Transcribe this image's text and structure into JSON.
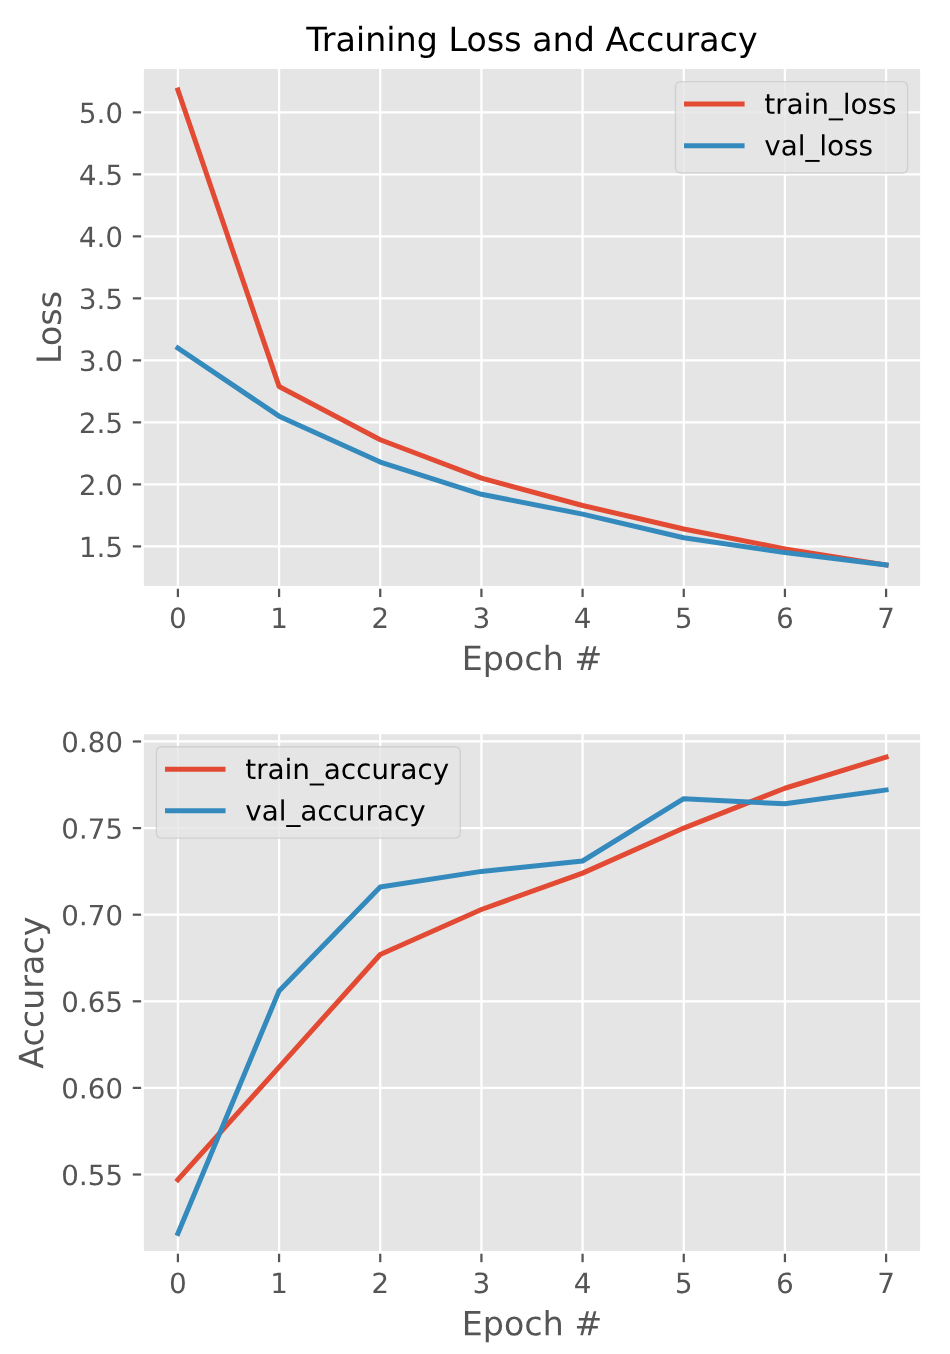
{
  "chart_data": [
    {
      "type": "line",
      "title": "Training Loss and Accuracy",
      "xlabel": "Epoch #",
      "ylabel": "Loss",
      "x": [
        0,
        1,
        2,
        3,
        4,
        5,
        6,
        7
      ],
      "xlim": [
        -0.35,
        7.35
      ],
      "xticks": [
        0,
        1,
        2,
        3,
        4,
        5,
        6,
        7
      ],
      "ylim": [
        1.17,
        5.36
      ],
      "yticks": [
        {
          "value": 1.5,
          "label": "1.5"
        },
        {
          "value": 2.0,
          "label": "2.0"
        },
        {
          "value": 2.5,
          "label": "2.5"
        },
        {
          "value": 3.0,
          "label": "3.0"
        },
        {
          "value": 3.5,
          "label": "3.5"
        },
        {
          "value": 4.0,
          "label": "4.0"
        },
        {
          "value": 4.5,
          "label": "4.5"
        },
        {
          "value": 5.0,
          "label": "5.0"
        }
      ],
      "grid": true,
      "legend": "top right",
      "series": [
        {
          "name": "train_loss",
          "color": "#e24a33",
          "values": [
            5.18,
            2.79,
            2.36,
            2.05,
            1.83,
            1.64,
            1.48,
            1.35
          ]
        },
        {
          "name": "val_loss",
          "color": "#348abd",
          "values": [
            3.1,
            2.55,
            2.18,
            1.92,
            1.76,
            1.57,
            1.45,
            1.35
          ]
        }
      ]
    },
    {
      "type": "line",
      "xlabel": "Epoch #",
      "ylabel": "Accuracy",
      "x": [
        0,
        1,
        2,
        3,
        4,
        5,
        6,
        7
      ],
      "xlim": [
        -0.35,
        7.35
      ],
      "xticks": [
        0,
        1,
        2,
        3,
        4,
        5,
        6,
        7
      ],
      "ylim": [
        0.505,
        0.805
      ],
      "yticks": [
        {
          "value": 0.55,
          "label": "0.55"
        },
        {
          "value": 0.6,
          "label": "0.60"
        },
        {
          "value": 0.65,
          "label": "0.65"
        },
        {
          "value": 0.7,
          "label": "0.70"
        },
        {
          "value": 0.75,
          "label": "0.75"
        },
        {
          "value": 0.8,
          "label": "0.80"
        }
      ],
      "grid": true,
      "legend": "top left",
      "series": [
        {
          "name": "train_accuracy",
          "color": "#e24a33",
          "values": [
            0.547,
            0.612,
            0.677,
            0.703,
            0.724,
            0.75,
            0.773,
            0.791
          ]
        },
        {
          "name": "val_accuracy",
          "color": "#348abd",
          "values": [
            0.516,
            0.656,
            0.716,
            0.725,
            0.731,
            0.767,
            0.764,
            0.772
          ]
        }
      ]
    }
  ]
}
